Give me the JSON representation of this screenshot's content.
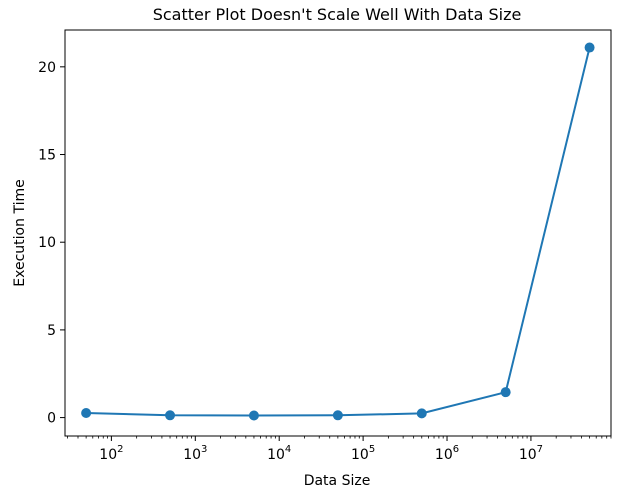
{
  "chart_data": {
    "type": "line",
    "title": "Scatter Plot Doesn't Scale Well With Data Size",
    "xlabel": "Data Size",
    "ylabel": "Execution Time",
    "xscale": "log",
    "xlim": [
      28,
      90000000
    ],
    "ylim": [
      -1.05,
      22.1
    ],
    "grid": false,
    "legend": "none",
    "x_ticks": [
      {
        "base": "10",
        "exp": "2",
        "value": 100
      },
      {
        "base": "10",
        "exp": "3",
        "value": 1000
      },
      {
        "base": "10",
        "exp": "4",
        "value": 10000
      },
      {
        "base": "10",
        "exp": "5",
        "value": 100000
      },
      {
        "base": "10",
        "exp": "6",
        "value": 1000000
      },
      {
        "base": "10",
        "exp": "7",
        "value": 10000000
      }
    ],
    "y_ticks": [
      {
        "label": "0",
        "value": 0
      },
      {
        "label": "5",
        "value": 5
      },
      {
        "label": "10",
        "value": 10
      },
      {
        "label": "15",
        "value": 15
      },
      {
        "label": "20",
        "value": 20
      }
    ],
    "series": [
      {
        "color": "#1f77b4",
        "x": [
          50,
          500,
          5000,
          50000,
          500000,
          5000000,
          50000000
        ],
        "y": [
          0.26,
          0.13,
          0.12,
          0.13,
          0.24,
          1.45,
          21.1
        ]
      }
    ]
  }
}
